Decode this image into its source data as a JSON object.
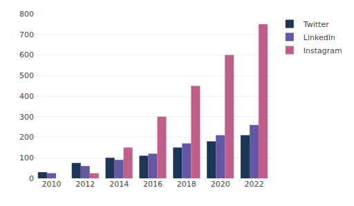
{
  "chart_data": {
    "type": "bar",
    "categories": [
      "2010",
      "2012",
      "2014",
      "2016",
      "2018",
      "2020",
      "2022"
    ],
    "series": [
      {
        "name": "Twitter",
        "color": "#1d3557",
        "values": [
          30,
          75,
          100,
          110,
          150,
          180,
          210
        ]
      },
      {
        "name": "LinkedIn",
        "color": "#6457a6",
        "values": [
          25,
          60,
          90,
          120,
          170,
          210,
          260
        ]
      },
      {
        "name": "Instagram",
        "color": "#c0608a",
        "values": [
          0,
          25,
          150,
          300,
          450,
          600,
          750
        ]
      }
    ],
    "ylim": [
      0,
      800
    ],
    "yticks": [
      0,
      100,
      200,
      300,
      400,
      500,
      600,
      700,
      800
    ],
    "grid": true,
    "legend": "right"
  }
}
